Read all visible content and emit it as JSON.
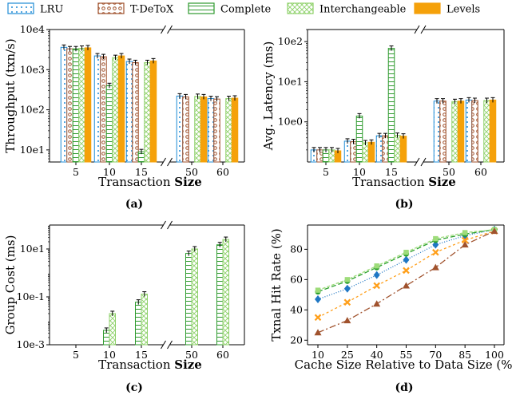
{
  "legend": [
    {
      "key": "lru",
      "label": "LRU",
      "color": "#1f8bd6",
      "fill": "#ffffff",
      "pattern": "dots"
    },
    {
      "key": "tdetox",
      "label": "T-DeToX",
      "color": "#a0522d",
      "fill": "#ffffff",
      "pattern": "circles"
    },
    {
      "key": "complete",
      "label": "Complete",
      "color": "#2e9a2e",
      "fill": "#ffffff",
      "pattern": "hlines"
    },
    {
      "key": "interchangeable",
      "label": "Interchangeable",
      "color": "#8fd16b",
      "fill": "#ffffff",
      "pattern": "cross"
    },
    {
      "key": "levels",
      "label": "Levels",
      "color": "#f5a10a",
      "fill": "#f5a10a",
      "pattern": "solid"
    }
  ],
  "chart_data": [
    {
      "id": "a",
      "caption": "(a)",
      "type": "bar",
      "scale": "log",
      "ylim": [
        5,
        10000
      ],
      "ylabel": "Throughput (txn/s)",
      "xlabel_parts": [
        "Transaction ",
        "Size"
      ],
      "ytick_labels": [
        {
          "value": 10,
          "label": "10e1"
        },
        {
          "value": 100,
          "label": "10e2"
        },
        {
          "value": 1000,
          "label": "10e3"
        },
        {
          "value": 10000,
          "label": "10e4"
        }
      ],
      "categories": [
        "5",
        "10",
        "15",
        "50",
        "60"
      ],
      "axis_break": true,
      "series": [
        {
          "key": "lru",
          "values": [
            3600,
            2200,
            1600,
            220,
            190
          ]
        },
        {
          "key": "tdetox",
          "values": [
            3300,
            2100,
            1500,
            210,
            185
          ]
        },
        {
          "key": "complete",
          "values": [
            3300,
            400,
            9,
            null,
            null
          ]
        },
        {
          "key": "interchangeable",
          "values": [
            3400,
            2000,
            1500,
            215,
            190
          ]
        },
        {
          "key": "levels",
          "values": [
            3500,
            2200,
            1650,
            210,
            195
          ]
        }
      ]
    },
    {
      "id": "b",
      "caption": "(b)",
      "type": "bar",
      "scale": "log",
      "ylim": [
        0.1,
        200
      ],
      "ylabel": "Avg. Latency (ms)",
      "xlabel_parts": [
        "Transaction ",
        "Size"
      ],
      "ytick_labels": [
        {
          "value": 1,
          "label": "10e0"
        },
        {
          "value": 10,
          "label": "10e1"
        },
        {
          "value": 100,
          "label": "10e2"
        }
      ],
      "categories": [
        "5",
        "10",
        "15",
        "50",
        "60"
      ],
      "axis_break": true,
      "series": [
        {
          "key": "lru",
          "values": [
            0.2,
            0.33,
            0.45,
            3.3,
            3.5
          ]
        },
        {
          "key": "tdetox",
          "values": [
            0.2,
            0.32,
            0.45,
            3.3,
            3.4
          ]
        },
        {
          "key": "complete",
          "values": [
            0.2,
            1.4,
            68,
            null,
            null
          ]
        },
        {
          "key": "interchangeable",
          "values": [
            0.2,
            0.3,
            0.46,
            3.2,
            3.4
          ]
        },
        {
          "key": "levels",
          "values": [
            0.19,
            0.31,
            0.44,
            3.3,
            3.5
          ]
        }
      ]
    },
    {
      "id": "c",
      "caption": "(c)",
      "type": "bar",
      "scale": "log",
      "ylim": [
        0.001,
        100
      ],
      "ylabel": "Group Cost (ms)",
      "xlabel_parts": [
        "Transaction ",
        "Size"
      ],
      "ytick_labels": [
        {
          "value": 0.001,
          "label": "10e-3"
        },
        {
          "value": 0.1,
          "label": "10e-1"
        },
        {
          "value": 10,
          "label": "10e1"
        }
      ],
      "categories": [
        "5",
        "10",
        "15",
        "50",
        "60"
      ],
      "axis_break": true,
      "series": [
        {
          "key": "complete",
          "values": [
            null,
            0.004,
            0.06,
            6.5,
            15
          ]
        },
        {
          "key": "interchangeable",
          "values": [
            null,
            0.02,
            0.13,
            10,
            25
          ]
        }
      ]
    },
    {
      "id": "d",
      "caption": "(d)",
      "type": "line",
      "ylim": [
        17,
        96
      ],
      "ylabel": "Txnal Hit Rate (%)",
      "xlabel": "Cache Size Relative to Data Size (%)",
      "yticks": [
        20,
        40,
        60,
        80
      ],
      "x": [
        10,
        25,
        40,
        55,
        70,
        85,
        100
      ],
      "series": [
        {
          "key": "lru_line",
          "color": "#1f77c4",
          "marker": "diamond",
          "dash": "1,2",
          "values": [
            47,
            54,
            63,
            73,
            83,
            89,
            93
          ]
        },
        {
          "key": "tdetox_line",
          "color": "#ff9f1a",
          "marker": "x",
          "dash": "3,3",
          "values": [
            35,
            45,
            56,
            66,
            78,
            86,
            92
          ]
        },
        {
          "key": "complete_line",
          "color": "#2ca02c",
          "marker": "circle",
          "dash": "6,3",
          "values": [
            52,
            59,
            68,
            77,
            86,
            90,
            93
          ]
        },
        {
          "key": "interchangeable_line",
          "color": "#9edc7a",
          "marker": "square",
          "dash": "4,2",
          "values": [
            53,
            60,
            69,
            78,
            87,
            91,
            93
          ]
        },
        {
          "key": "levels_line",
          "color": "#a0522d",
          "marker": "triangle",
          "dash": "8,3,2,3",
          "values": [
            25,
            33,
            44,
            56,
            68,
            83,
            92
          ]
        }
      ]
    }
  ]
}
